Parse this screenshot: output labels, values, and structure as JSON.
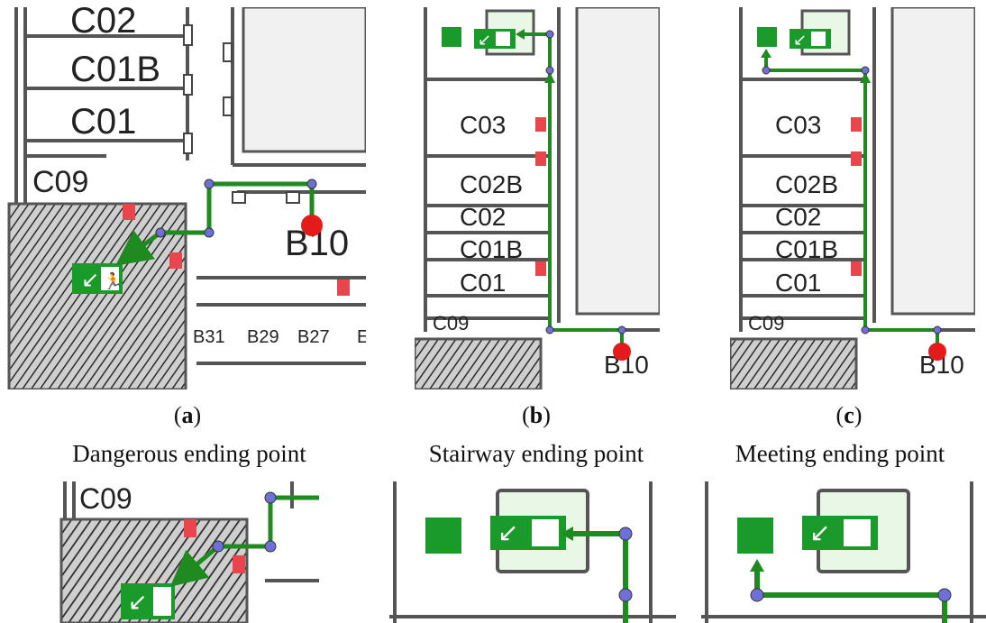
{
  "panels": [
    {
      "letter": "a",
      "caption_open": "(",
      "caption_close": ")",
      "subtitle": "Dangerous ending point",
      "rooms": {
        "c02": "C02",
        "c01b": "C01B",
        "c01": "C01",
        "c09": "C09",
        "b10": "B10",
        "b31": "B31",
        "b29": "B29",
        "b27": "B27",
        "bx": "E"
      }
    },
    {
      "letter": "b",
      "caption_open": "(",
      "caption_close": ")",
      "subtitle": "Stairway ending point",
      "rooms": {
        "c03": "C03",
        "c02b": "C02B",
        "c02": "C02",
        "c01b": "C01B",
        "c01": "C01",
        "c09": "C09",
        "b10": "B10"
      }
    },
    {
      "letter": "c",
      "caption_open": "(",
      "caption_close": ")",
      "subtitle": "Meeting ending point",
      "rooms": {
        "c03": "C03",
        "c02b": "C02B",
        "c02": "C02",
        "c01b": "C01B",
        "c01": "C01",
        "c09": "C09",
        "b10": "B10"
      }
    }
  ],
  "bottom_crops": {
    "d_label": "C09"
  },
  "colors": {
    "path": "#1f8a1f",
    "start": "#e31b1b",
    "node": "#6f6fd8",
    "exit_sign": "#1a9a2a",
    "fire": "#e8454d",
    "hatch": "#333333"
  }
}
